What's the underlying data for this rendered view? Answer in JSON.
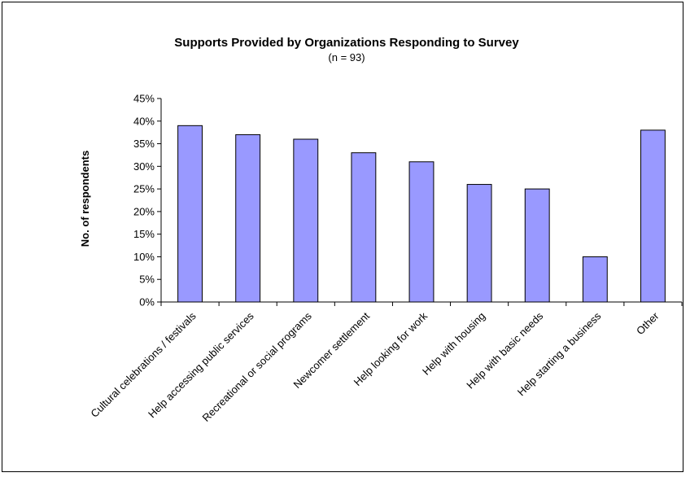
{
  "chart_data": {
    "type": "bar",
    "title": "Supports Provided by Organizations Responding to Survey",
    "subtitle": "(n = 93)",
    "xlabel": "",
    "ylabel": "No. of respondents",
    "categories": [
      "Cultural celebrations / festivals",
      "Help accessing public services",
      "Recreational or social programs",
      "Newcomer settlement",
      "Help looking for work",
      "Help with housing",
      "Help with basic needs",
      "Help starting a business",
      "Other"
    ],
    "values": [
      0.39,
      0.37,
      0.36,
      0.33,
      0.31,
      0.26,
      0.25,
      0.1,
      0.38
    ],
    "ylim": [
      0,
      0.45
    ],
    "yticks": [
      0,
      0.05,
      0.1,
      0.15,
      0.2,
      0.25,
      0.3,
      0.35,
      0.4,
      0.45
    ],
    "ytick_labels": [
      "0%",
      "5%",
      "10%",
      "15%",
      "20%",
      "25%",
      "30%",
      "35%",
      "40%",
      "45%"
    ],
    "grid": false,
    "legend": "none",
    "colors": {
      "bar_fill": "#9999ff",
      "bar_stroke": "#000000"
    }
  }
}
